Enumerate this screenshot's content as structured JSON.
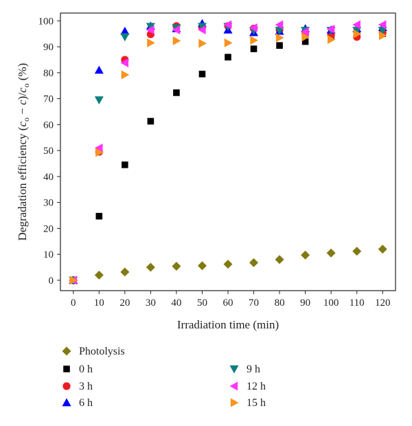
{
  "chart_data": {
    "type": "scatter",
    "xlabel": "Irradiation time (min)",
    "ylabel": {
      "prefix": "Degradation efficiency (",
      "c": "c",
      "sub_o": "o",
      "minus": " − ",
      "c2": "c",
      "slash": ")/",
      "c3": "c",
      "sub_o2": "o",
      "suffix": " (%)"
    },
    "xlim": [
      -5,
      125
    ],
    "ylim": [
      -4,
      103
    ],
    "xticks": [
      0,
      10,
      20,
      30,
      40,
      50,
      60,
      70,
      80,
      90,
      100,
      110,
      120
    ],
    "yticks": [
      0,
      10,
      20,
      30,
      40,
      50,
      60,
      70,
      80,
      90,
      100
    ],
    "grid": false,
    "legend_position": "bottom",
    "series": [
      {
        "name": "Photolysis",
        "marker": "diamond",
        "color": "#807a12",
        "x": [
          0,
          10,
          20,
          30,
          40,
          50,
          60,
          70,
          80,
          90,
          100,
          110,
          120
        ],
        "y": [
          0,
          2,
          3.2,
          5,
          5.4,
          5.6,
          6.2,
          6.8,
          8,
          9.7,
          10.5,
          11.2,
          12
        ]
      },
      {
        "name": "0 h",
        "marker": "square",
        "color": "#000000",
        "x": [
          0,
          10,
          20,
          30,
          40,
          50,
          60,
          70,
          80,
          90,
          100,
          110,
          120
        ],
        "y": [
          0,
          24.7,
          44.5,
          61.3,
          72.3,
          79.5,
          86,
          89.2,
          90.5,
          92,
          94,
          94.3,
          95
        ]
      },
      {
        "name": "3 h",
        "marker": "circle",
        "color": "#ed1c24",
        "x": [
          0,
          10,
          20,
          30,
          40,
          50,
          60,
          70,
          80,
          90,
          100,
          110,
          120
        ],
        "y": [
          0,
          49.5,
          85,
          94.8,
          98,
          97.5,
          98,
          97,
          96.5,
          95,
          94.5,
          93.8,
          95.5
        ]
      },
      {
        "name": "6 h",
        "marker": "triangle-up",
        "color": "#0000ff",
        "x": [
          0,
          10,
          20,
          30,
          40,
          50,
          60,
          70,
          80,
          90,
          100,
          110,
          120
        ],
        "y": [
          0,
          81,
          96,
          98,
          97,
          99,
          96.5,
          95.5,
          96,
          97,
          96.5,
          97,
          97.5
        ]
      },
      {
        "name": "9 h",
        "marker": "triangle-down",
        "color": "#0d7f7f",
        "x": [
          0,
          10,
          20,
          30,
          40,
          50,
          60,
          70,
          80,
          90,
          100,
          110,
          120
        ],
        "y": [
          0,
          69.5,
          93.8,
          97.8,
          97.3,
          97.8,
          97.8,
          96.3,
          96.3,
          96.3,
          96.3,
          96.3,
          96.3
        ]
      },
      {
        "name": "12 h",
        "marker": "triangle-left",
        "color": "#ff33ff",
        "x": [
          0,
          10,
          20,
          30,
          40,
          50,
          60,
          70,
          80,
          90,
          100,
          110,
          120
        ],
        "y": [
          0,
          51,
          83.8,
          96.5,
          96.5,
          96.5,
          98.5,
          97.3,
          98.5,
          95.8,
          96.8,
          98.5,
          98.5
        ]
      },
      {
        "name": "15 h",
        "marker": "triangle-right",
        "color": "#f7931e",
        "x": [
          0,
          10,
          20,
          30,
          40,
          50,
          60,
          70,
          80,
          90,
          100,
          110,
          120
        ],
        "y": [
          0,
          49.3,
          79.2,
          91.5,
          92.3,
          91.3,
          91.5,
          92.5,
          93.5,
          93.8,
          92.8,
          95,
          94.3
        ]
      }
    ],
    "legend_layout": [
      {
        "series": 0,
        "column": 0,
        "row": 0
      },
      {
        "series": 1,
        "column": 0,
        "row": 1
      },
      {
        "series": 2,
        "column": 0,
        "row": 2
      },
      {
        "series": 3,
        "column": 0,
        "row": 3
      },
      {
        "series": 4,
        "column": 1,
        "row": 1
      },
      {
        "series": 5,
        "column": 1,
        "row": 2
      },
      {
        "series": 6,
        "column": 1,
        "row": 3
      }
    ]
  }
}
